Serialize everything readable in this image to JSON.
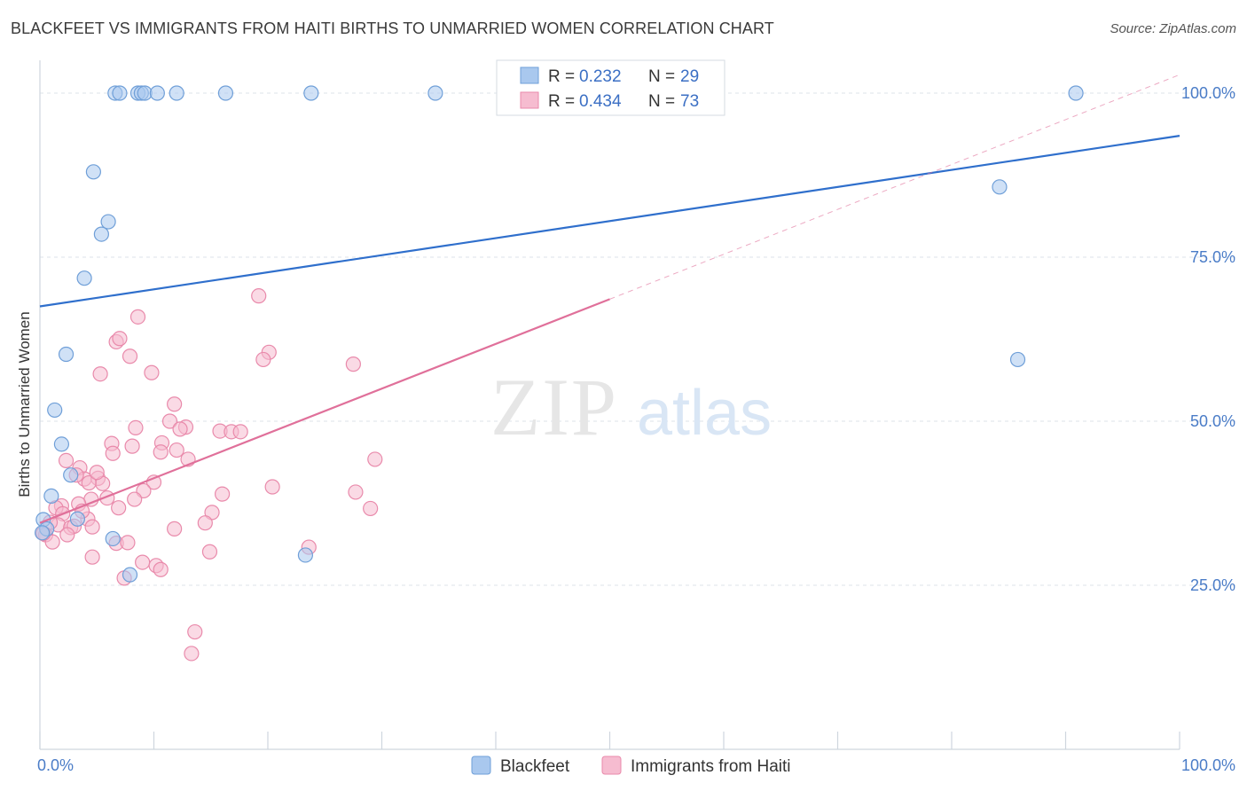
{
  "header": {
    "title": "BLACKFEET VS IMMIGRANTS FROM HAITI BIRTHS TO UNMARRIED WOMEN CORRELATION CHART",
    "source": "Source: ZipAtlas.com"
  },
  "watermark": {
    "zip": "ZIP",
    "atlas": "atlas"
  },
  "colors": {
    "blue_fill": "#a9c8ee",
    "blue_stroke": "#6f9fd8",
    "blue_line": "#2f6fcc",
    "pink_fill": "#f6bcd0",
    "pink_stroke": "#e98aab",
    "pink_line": "#e0709a",
    "grid": "#dde3ea",
    "tick_label": "#4a7cc7"
  },
  "chart_data": {
    "type": "scatter",
    "title": "BLACKFEET VS IMMIGRANTS FROM HAITI BIRTHS TO UNMARRIED WOMEN CORRELATION CHART",
    "xlabel": "",
    "ylabel": "Births to Unmarried Women",
    "xlim": [
      0,
      100
    ],
    "ylim": [
      0,
      105
    ],
    "x_tick_labels": {
      "left": "0.0%",
      "right": "100.0%"
    },
    "y_ticks": [
      {
        "value": 25,
        "label": "25.0%"
      },
      {
        "value": 50,
        "label": "50.0%"
      },
      {
        "value": 75,
        "label": "75.0%"
      },
      {
        "value": 100,
        "label": "100.0%"
      }
    ],
    "grid": true,
    "legend_position": "top-center",
    "stats": [
      {
        "r_label": "R = ",
        "r": "0.232",
        "n_label": "N = ",
        "n": "29"
      },
      {
        "r_label": "R = ",
        "r": "0.434",
        "n_label": "N = ",
        "n": "73"
      }
    ],
    "series": [
      {
        "name": "Blackfeet",
        "color": "blue",
        "trend": {
          "x": [
            0,
            100
          ],
          "y": [
            67.5,
            93.5
          ],
          "dashed_extension": false
        },
        "points": [
          [
            6.6,
            100
          ],
          [
            7.0,
            100
          ],
          [
            8.6,
            100
          ],
          [
            8.9,
            100
          ],
          [
            9.2,
            100
          ],
          [
            10.3,
            100
          ],
          [
            12.0,
            100
          ],
          [
            16.3,
            100
          ],
          [
            23.8,
            100
          ],
          [
            34.7,
            100
          ],
          [
            90.9,
            100
          ],
          [
            4.7,
            88
          ],
          [
            6.0,
            80.4
          ],
          [
            5.4,
            78.5
          ],
          [
            3.9,
            71.8
          ],
          [
            84.2,
            85.7
          ],
          [
            85.8,
            59.4
          ],
          [
            2.3,
            60.2
          ],
          [
            1.3,
            51.7
          ],
          [
            1.9,
            46.5
          ],
          [
            2.7,
            41.8
          ],
          [
            1.0,
            38.6
          ],
          [
            3.3,
            35.1
          ],
          [
            0.3,
            35
          ],
          [
            0.6,
            33.6
          ],
          [
            0.2,
            33
          ],
          [
            6.4,
            32.1
          ],
          [
            7.9,
            26.6
          ],
          [
            23.3,
            29.6
          ]
        ]
      },
      {
        "name": "Immigrants from Haiti",
        "color": "pink",
        "trend": {
          "x": [
            0,
            50
          ],
          "y": [
            34.5,
            68.6
          ],
          "dashed_extension": true,
          "dashed_to": [
            100,
            102.8
          ]
        },
        "points": [
          [
            19.2,
            69.1
          ],
          [
            8.6,
            65.9
          ],
          [
            6.7,
            62.1
          ],
          [
            7.0,
            62.6
          ],
          [
            20.1,
            60.5
          ],
          [
            19.6,
            59.4
          ],
          [
            27.5,
            58.7
          ],
          [
            7.9,
            59.9
          ],
          [
            5.3,
            57.2
          ],
          [
            9.8,
            57.4
          ],
          [
            11.8,
            52.6
          ],
          [
            11.4,
            50
          ],
          [
            12.8,
            49.1
          ],
          [
            8.4,
            49
          ],
          [
            15.8,
            48.5
          ],
          [
            16.8,
            48.4
          ],
          [
            17.6,
            48.4
          ],
          [
            6.3,
            46.6
          ],
          [
            8.1,
            46.2
          ],
          [
            10.7,
            46.7
          ],
          [
            6.4,
            45.1
          ],
          [
            10.6,
            45.3
          ],
          [
            12.0,
            45.6
          ],
          [
            29.4,
            44.2
          ],
          [
            2.3,
            44
          ],
          [
            13.0,
            44.2
          ],
          [
            3.5,
            42.9
          ],
          [
            3.9,
            41.2
          ],
          [
            5.1,
            41.3
          ],
          [
            5.5,
            40.5
          ],
          [
            10.0,
            40.7
          ],
          [
            4.3,
            40.6
          ],
          [
            3.2,
            41.8
          ],
          [
            20.4,
            40
          ],
          [
            9.1,
            39.4
          ],
          [
            27.7,
            39.2
          ],
          [
            16.0,
            38.9
          ],
          [
            4.5,
            38.1
          ],
          [
            5.9,
            38.3
          ],
          [
            8.3,
            38.1
          ],
          [
            1.9,
            37.1
          ],
          [
            3.4,
            37.4
          ],
          [
            1.4,
            36.8
          ],
          [
            6.9,
            36.8
          ],
          [
            15.1,
            36.1
          ],
          [
            29.0,
            36.7
          ],
          [
            2.0,
            35.9
          ],
          [
            4.2,
            35.1
          ],
          [
            1.6,
            34.2
          ],
          [
            0.9,
            34.6
          ],
          [
            2.7,
            33.8
          ],
          [
            3.0,
            34
          ],
          [
            4.6,
            33.9
          ],
          [
            14.5,
            34.5
          ],
          [
            11.8,
            33.6
          ],
          [
            0.5,
            32.7
          ],
          [
            2.4,
            32.7
          ],
          [
            1.1,
            31.6
          ],
          [
            6.7,
            31.4
          ],
          [
            7.7,
            31.5
          ],
          [
            23.6,
            30.8
          ],
          [
            14.9,
            30.1
          ],
          [
            4.6,
            29.3
          ],
          [
            9.0,
            28.5
          ],
          [
            10.2,
            28
          ],
          [
            10.6,
            27.4
          ],
          [
            7.4,
            26.1
          ],
          [
            13.6,
            17.9
          ],
          [
            13.3,
            14.6
          ],
          [
            0.3,
            32.9
          ],
          [
            5.0,
            42.2
          ],
          [
            12.3,
            48.8
          ],
          [
            3.7,
            36.3
          ]
        ]
      }
    ],
    "bottom_legend": [
      "Blackfeet",
      "Immigrants from Haiti"
    ]
  }
}
